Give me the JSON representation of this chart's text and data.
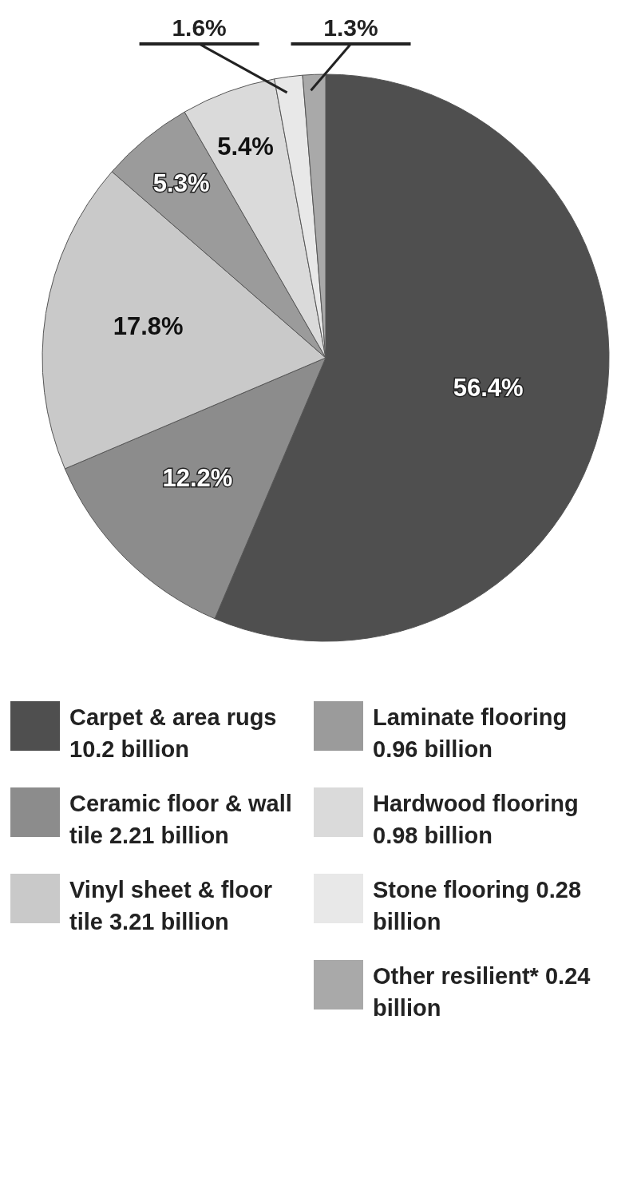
{
  "chart_data": {
    "type": "pie",
    "categories": [
      "Carpet & area rugs 10.2 billion",
      "Ceramic floor & wall tile 2.21 billion",
      "Vinyl sheet & floor tile 3.21 billion",
      "Laminate flooring 0.96 billion",
      "Hardwood flooring 0.98 billion",
      "Stone flooring 0.28 billion",
      "Other resilient* 0.24 billion"
    ],
    "values": [
      56.4,
      12.2,
      17.8,
      5.3,
      5.4,
      1.6,
      1.3
    ],
    "value_labels": [
      "56.4%",
      "12.2%",
      "17.8%",
      "5.3%",
      "5.4%",
      "1.6%",
      "1.3%"
    ],
    "colors": [
      "#4f4f4f",
      "#8c8c8c",
      "#c9c9c9",
      "#9b9b9b",
      "#dadada",
      "#e8e8e8",
      "#a9a9a9"
    ],
    "legend": "bottom"
  }
}
